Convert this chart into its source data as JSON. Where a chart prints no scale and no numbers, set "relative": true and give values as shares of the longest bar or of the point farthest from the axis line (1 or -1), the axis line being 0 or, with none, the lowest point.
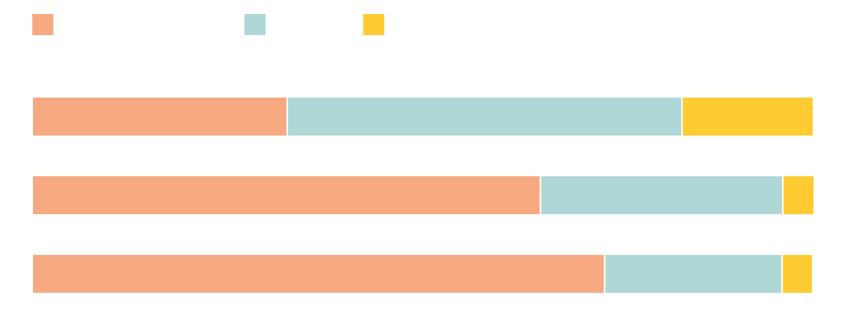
{
  "chart_data": {
    "type": "bar",
    "orientation": "horizontal",
    "stacked": true,
    "relative": true,
    "categories": [
      null,
      null,
      null
    ],
    "series": [
      {
        "color": "#f7a982",
        "values": [
          0.326,
          0.65,
          0.732
        ]
      },
      {
        "color": "#afd7d6",
        "values": [
          0.505,
          0.31,
          0.227
        ]
      },
      {
        "color": "#ffcb33",
        "values": [
          0.168,
          0.04,
          0.039
        ]
      }
    ]
  }
}
